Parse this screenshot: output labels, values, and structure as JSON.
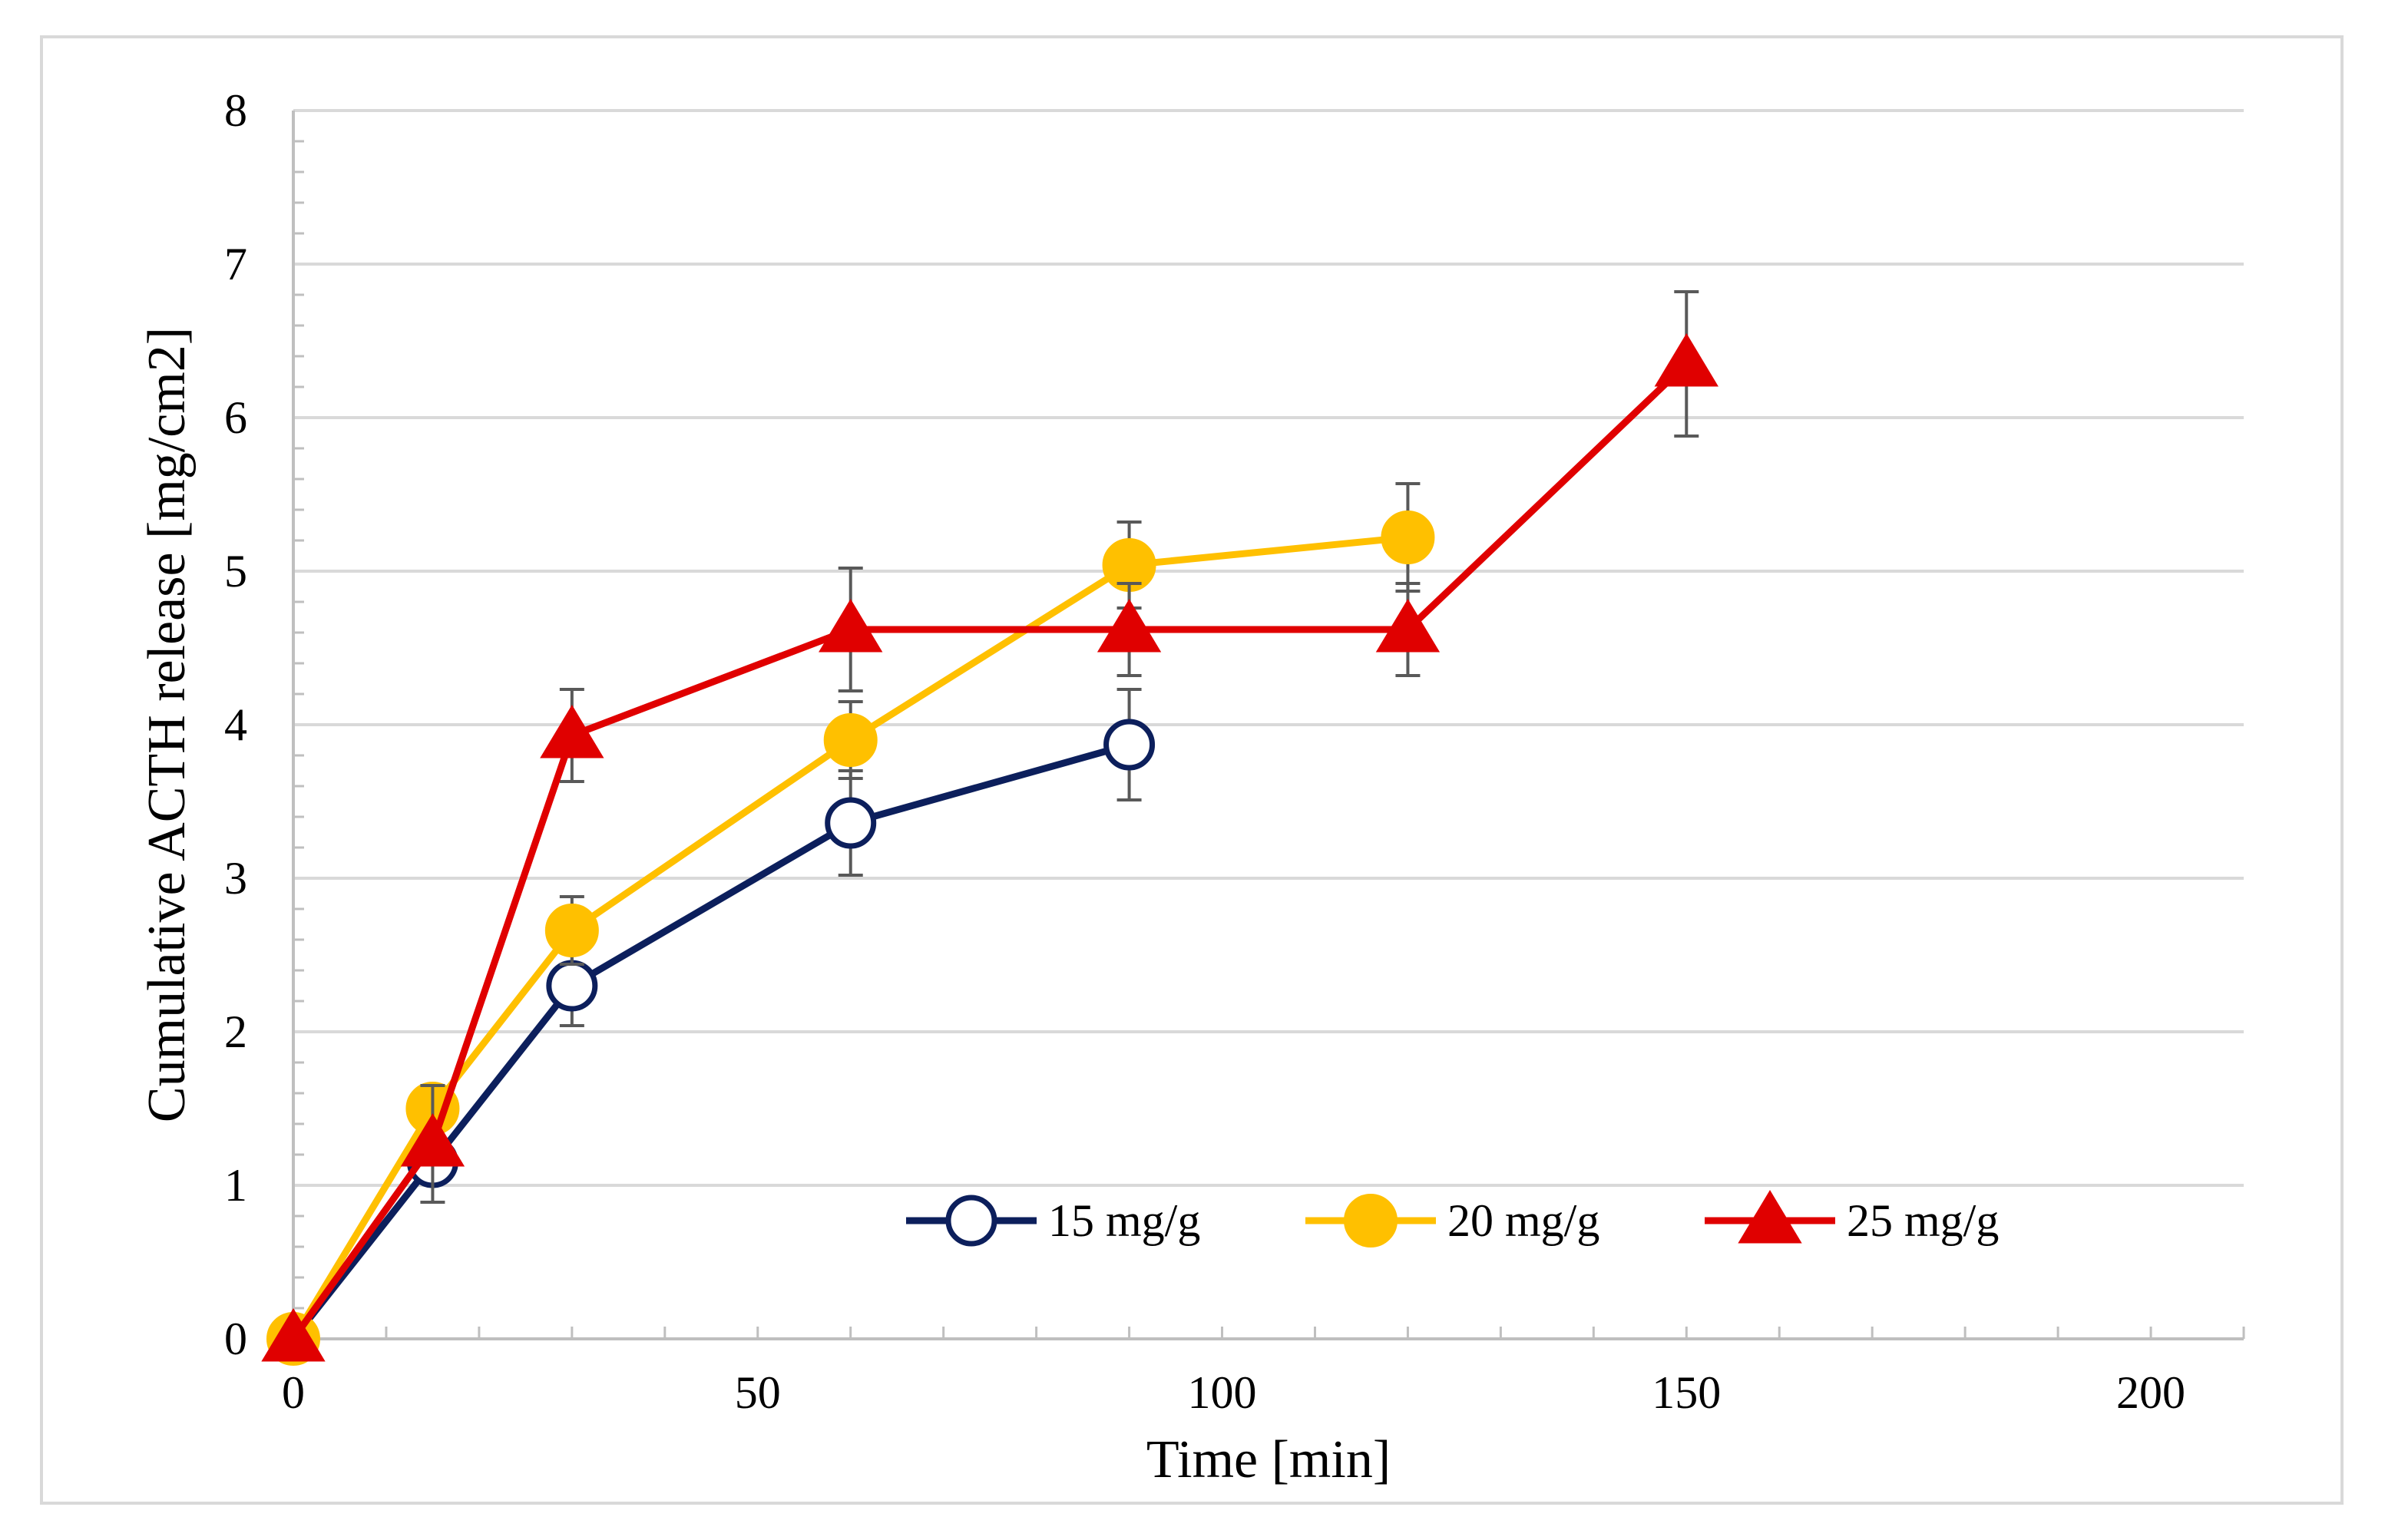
{
  "chart_data": {
    "type": "line",
    "xlabel": "Time [min]",
    "ylabel": "Cumulative ACTH release [mg/cm2]",
    "xlim": [
      0,
      210
    ],
    "ylim": [
      0,
      8
    ],
    "x_ticks": [
      0,
      50,
      100,
      150,
      200
    ],
    "y_ticks": [
      0,
      1,
      2,
      3,
      4,
      5,
      6,
      7,
      8
    ],
    "grid": "horizontal",
    "legend_position": "bottom-right",
    "series": [
      {
        "name": "15 mg/g",
        "color": "#0c1f5c",
        "marker": "open-circle",
        "x": [
          0,
          15,
          30,
          60,
          90
        ],
        "y": [
          0,
          1.15,
          2.3,
          3.36,
          3.87
        ],
        "error": [
          0,
          0.1,
          0.26,
          0.34,
          0.36
        ]
      },
      {
        "name": "20 mg/g",
        "color": "#ffc000",
        "marker": "filled-circle",
        "x": [
          0,
          15,
          30,
          60,
          90,
          120
        ],
        "y": [
          0,
          1.5,
          2.66,
          3.9,
          5.04,
          5.22
        ],
        "error": [
          0,
          0.12,
          0.22,
          0.25,
          0.28,
          0.35
        ]
      },
      {
        "name": "25 mg/g",
        "color": "#e00000",
        "marker": "filled-triangle",
        "x": [
          0,
          15,
          30,
          60,
          90,
          120,
          150
        ],
        "y": [
          0,
          1.27,
          3.93,
          4.62,
          4.62,
          4.62,
          6.35
        ],
        "error": [
          0,
          0.38,
          0.3,
          0.4,
          0.3,
          0.3,
          0.47
        ]
      }
    ]
  }
}
